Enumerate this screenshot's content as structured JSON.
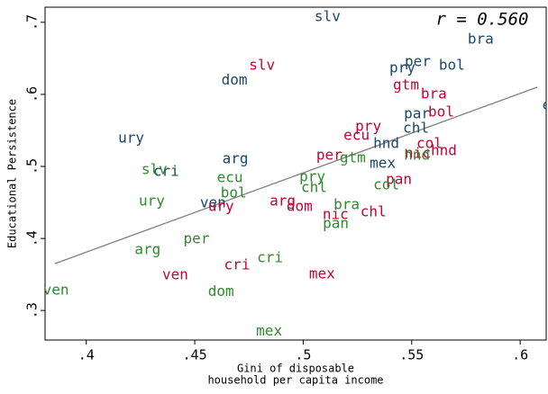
{
  "chart_data": {
    "type": "scatter",
    "annotation": "r =  0.560",
    "xlabel": [
      "Gini of disposable",
      "household per capita income"
    ],
    "ylabel": "Educational Persistence",
    "xlim": [
      0.381,
      0.612
    ],
    "ylim": [
      0.259,
      0.721
    ],
    "xticks": [
      {
        "value": 0.4,
        "label": ".4"
      },
      {
        "value": 0.45,
        "label": ".45"
      },
      {
        "value": 0.5,
        "label": ".5"
      },
      {
        "value": 0.55,
        "label": ".55"
      },
      {
        "value": 0.6,
        "label": ".6"
      }
    ],
    "yticks": [
      {
        "value": 0.3,
        "label": ".3"
      },
      {
        "value": 0.4,
        "label": ".4"
      },
      {
        "value": 0.5,
        "label": ".5"
      },
      {
        "value": 0.6,
        "label": ".6"
      },
      {
        "value": 0.7,
        "label": ".7"
      }
    ],
    "fit_line": {
      "color": "#808080",
      "x": [
        0.3855,
        0.6079
      ],
      "y": [
        0.365,
        0.61
      ]
    },
    "series": [
      {
        "color": "#1a476f",
        "labels": [
          "slv",
          "bra",
          "per",
          "bol",
          "pry",
          "dom",
          "ecu",
          "par",
          "chl",
          "ury",
          "hnd",
          "arg",
          "mex",
          "cri",
          "ven"
        ],
        "x": [
          0.5112,
          0.5818,
          0.5528,
          0.5685,
          0.5457,
          0.4683,
          0.6162,
          0.5524,
          0.552,
          0.4207,
          0.5383,
          0.4687,
          0.5366,
          0.4368,
          0.4584
        ],
        "y": [
          0.7075,
          0.676,
          0.645,
          0.64,
          0.636,
          0.619,
          0.584,
          0.5725,
          0.5525,
          0.539,
          0.531,
          0.51,
          0.504,
          0.4925,
          0.449
        ]
      },
      {
        "color": "#c10534",
        "labels": [
          "slv",
          "gtm",
          "bra",
          "bol",
          "pry",
          "ecu",
          "col",
          "nic",
          "hnd",
          "per",
          "pan",
          "arg",
          "dom",
          "ury",
          "nic",
          "chl",
          "cri",
          "ven",
          "mex"
        ],
        "x": [
          0.481,
          0.5474,
          0.5602,
          0.5636,
          0.53,
          0.5246,
          0.5582,
          0.5528,
          0.5648,
          0.512,
          0.5441,
          0.4905,
          0.4983,
          0.4621,
          0.5149,
          0.5323,
          0.4695,
          0.441,
          0.5087
        ],
        "y": [
          0.64,
          0.6125,
          0.6,
          0.575,
          0.555,
          0.5425,
          0.531,
          0.5175,
          0.521,
          0.515,
          0.481,
          0.451,
          0.444,
          0.444,
          0.4325,
          0.436,
          0.3625,
          0.349,
          0.35
        ]
      },
      {
        "color": "#2e8b2e",
        "labels": [
          "hnd",
          "gtm",
          "pry",
          "slv",
          "ecu",
          "col",
          "chl",
          "bol",
          "ury",
          "bra",
          "pan",
          "per",
          "arg",
          "cri",
          "dom",
          "ven",
          "mex"
        ],
        "x": [
          0.5524,
          0.5228,
          0.5042,
          0.4314,
          0.4662,
          0.5383,
          0.505,
          0.4679,
          0.4302,
          0.52,
          0.515,
          0.4508,
          0.4283,
          0.4847,
          0.4621,
          0.386,
          0.4843
        ],
        "y": [
          0.515,
          0.511,
          0.485,
          0.495,
          0.484,
          0.474,
          0.47,
          0.4625,
          0.451,
          0.446,
          0.42,
          0.399,
          0.384,
          0.3725,
          0.326,
          0.3275,
          0.271
        ]
      }
    ]
  }
}
